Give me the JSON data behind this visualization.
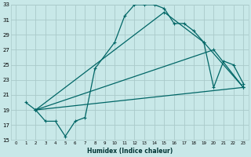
{
  "xlabel": "Humidex (Indice chaleur)",
  "bg_color": "#c8e8e8",
  "grid_color": "#aacaca",
  "line_color": "#006666",
  "xlim": [
    -0.5,
    23.5
  ],
  "ylim": [
    15,
    33
  ],
  "yticks": [
    15,
    17,
    19,
    21,
    23,
    25,
    27,
    29,
    31,
    33
  ],
  "xticks": [
    0,
    1,
    2,
    3,
    4,
    5,
    6,
    7,
    8,
    9,
    10,
    11,
    12,
    13,
    14,
    15,
    16,
    17,
    18,
    19,
    20,
    21,
    22,
    23
  ],
  "series": [
    {
      "x": [
        1,
        2,
        3,
        4,
        5,
        6,
        7,
        8,
        10,
        11,
        12,
        13,
        14,
        15,
        16,
        17,
        18,
        19,
        20,
        21,
        22,
        23
      ],
      "y": [
        20,
        19,
        17.5,
        17.5,
        15.5,
        17.5,
        18,
        24.5,
        28,
        31.5,
        33,
        33,
        33,
        32.5,
        30.5,
        30.5,
        29.5,
        28,
        22,
        25.5,
        25,
        22.5
      ]
    },
    {
      "x": [
        2,
        15,
        19,
        23
      ],
      "y": [
        19,
        32,
        28,
        22
      ]
    },
    {
      "x": [
        2,
        20,
        23
      ],
      "y": [
        19,
        27,
        22
      ]
    },
    {
      "x": [
        2,
        23
      ],
      "y": [
        19,
        22
      ]
    }
  ]
}
